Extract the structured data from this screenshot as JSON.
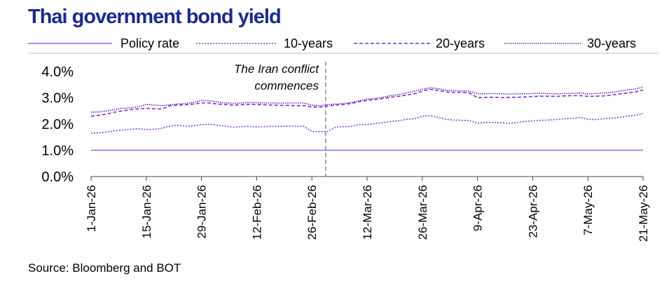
{
  "chart_data": {
    "type": "line",
    "title": "Thai government bond yield",
    "source": "Source: Bloomberg and BOT",
    "annotation": [
      "The Iran conflict",
      "commences"
    ],
    "categories": [
      "1-Jan-26",
      null,
      null,
      null,
      null,
      null,
      null,
      "15-Jan-26",
      null,
      null,
      null,
      null,
      null,
      null,
      "29-Jan-26",
      null,
      null,
      null,
      null,
      null,
      null,
      "12-Feb-26",
      null,
      null,
      null,
      null,
      null,
      null,
      "26-Feb-26",
      null,
      null,
      null,
      null,
      null,
      null,
      "12-Mar-26",
      null,
      null,
      null,
      null,
      null,
      null,
      "26-Mar-26",
      null,
      null,
      null,
      null,
      null,
      null,
      "9-Apr-26",
      null,
      null,
      null,
      null,
      null,
      null,
      "23-Apr-26",
      null,
      null,
      null,
      null,
      null,
      null,
      "7-May-26",
      null,
      null,
      null,
      null,
      null,
      null,
      "21-May-26"
    ],
    "series": [
      {
        "name": "Policy rate",
        "color": "#9b5fe0",
        "style": "solid",
        "values": [
          1,
          1,
          1,
          1,
          1,
          1,
          1,
          1,
          1,
          1,
          1,
          1,
          1,
          1,
          1,
          1,
          1,
          1,
          1,
          1,
          1,
          1,
          1,
          1,
          1,
          1,
          1,
          1,
          1,
          1,
          1,
          1,
          1,
          1,
          1,
          1,
          1,
          1,
          1,
          1,
          1,
          1,
          1,
          1,
          1,
          1,
          1,
          1,
          1,
          1,
          1,
          1,
          1,
          1,
          1,
          1,
          1,
          1,
          1,
          1,
          1,
          1,
          1,
          1,
          1,
          1,
          1,
          1,
          1,
          1,
          1
        ]
      },
      {
        "name": "10-years",
        "color": "#8a3ad6",
        "style": "dotted",
        "values": [
          1.65,
          1.66,
          1.7,
          1.74,
          1.77,
          1.8,
          1.82,
          1.79,
          1.8,
          1.84,
          1.92,
          1.95,
          1.92,
          1.93,
          1.98,
          1.99,
          1.95,
          1.92,
          1.88,
          1.9,
          1.91,
          1.89,
          1.9,
          1.91,
          1.91,
          1.92,
          1.92,
          1.91,
          1.72,
          1.71,
          1.72,
          1.88,
          1.9,
          1.91,
          1.98,
          1.97,
          2.02,
          2.05,
          2.1,
          2.12,
          2.18,
          2.2,
          2.3,
          2.32,
          2.25,
          2.18,
          2.15,
          2.14,
          2.13,
          2.03,
          2.06,
          2.06,
          2.05,
          2.03,
          2.05,
          2.1,
          2.12,
          2.14,
          2.15,
          2.17,
          2.2,
          2.21,
          2.25,
          2.18,
          2.17,
          2.2,
          2.22,
          2.25,
          2.3,
          2.33,
          2.4
        ]
      },
      {
        "name": "20-years",
        "color": "#7a2fc4",
        "style": "dashed",
        "values": [
          2.3,
          2.33,
          2.38,
          2.45,
          2.5,
          2.55,
          2.57,
          2.6,
          2.58,
          2.57,
          2.7,
          2.72,
          2.73,
          2.76,
          2.8,
          2.8,
          2.76,
          2.74,
          2.72,
          2.73,
          2.75,
          2.74,
          2.73,
          2.72,
          2.71,
          2.71,
          2.7,
          2.7,
          2.65,
          2.64,
          2.68,
          2.72,
          2.74,
          2.78,
          2.85,
          2.9,
          2.93,
          2.97,
          3.02,
          3.05,
          3.1,
          3.15,
          3.25,
          3.32,
          3.28,
          3.22,
          3.2,
          3.2,
          3.18,
          3.0,
          3.01,
          3.02,
          3.0,
          3.01,
          3.02,
          3.03,
          3.05,
          3.06,
          3.06,
          3.05,
          3.07,
          3.08,
          3.08,
          3.05,
          3.06,
          3.07,
          3.1,
          3.15,
          3.18,
          3.22,
          3.3
        ]
      },
      {
        "name": "30-years",
        "color": "#6a1fb0",
        "style": "dense-dotted",
        "values": [
          2.45,
          2.46,
          2.5,
          2.55,
          2.6,
          2.62,
          2.65,
          2.75,
          2.72,
          2.7,
          2.73,
          2.76,
          2.78,
          2.82,
          2.9,
          2.88,
          2.84,
          2.8,
          2.79,
          2.8,
          2.82,
          2.81,
          2.8,
          2.8,
          2.79,
          2.8,
          2.8,
          2.8,
          2.72,
          2.7,
          2.73,
          2.76,
          2.78,
          2.82,
          2.88,
          2.95,
          2.97,
          3.02,
          3.08,
          3.12,
          3.18,
          3.25,
          3.32,
          3.38,
          3.35,
          3.28,
          3.27,
          3.26,
          3.25,
          3.15,
          3.15,
          3.16,
          3.15,
          3.14,
          3.15,
          3.15,
          3.16,
          3.17,
          3.16,
          3.15,
          3.16,
          3.17,
          3.18,
          3.15,
          3.16,
          3.18,
          3.2,
          3.25,
          3.3,
          3.33,
          3.4
        ]
      }
    ],
    "ylim": [
      0,
      4
    ],
    "yticks": [
      {
        "value": 0,
        "label": "0.0%"
      },
      {
        "value": 1,
        "label": "1.0%"
      },
      {
        "value": 2,
        "label": "2.0%"
      },
      {
        "value": 3,
        "label": "3.0%"
      },
      {
        "value": 4,
        "label": "4.0%"
      }
    ],
    "grid": false
  }
}
